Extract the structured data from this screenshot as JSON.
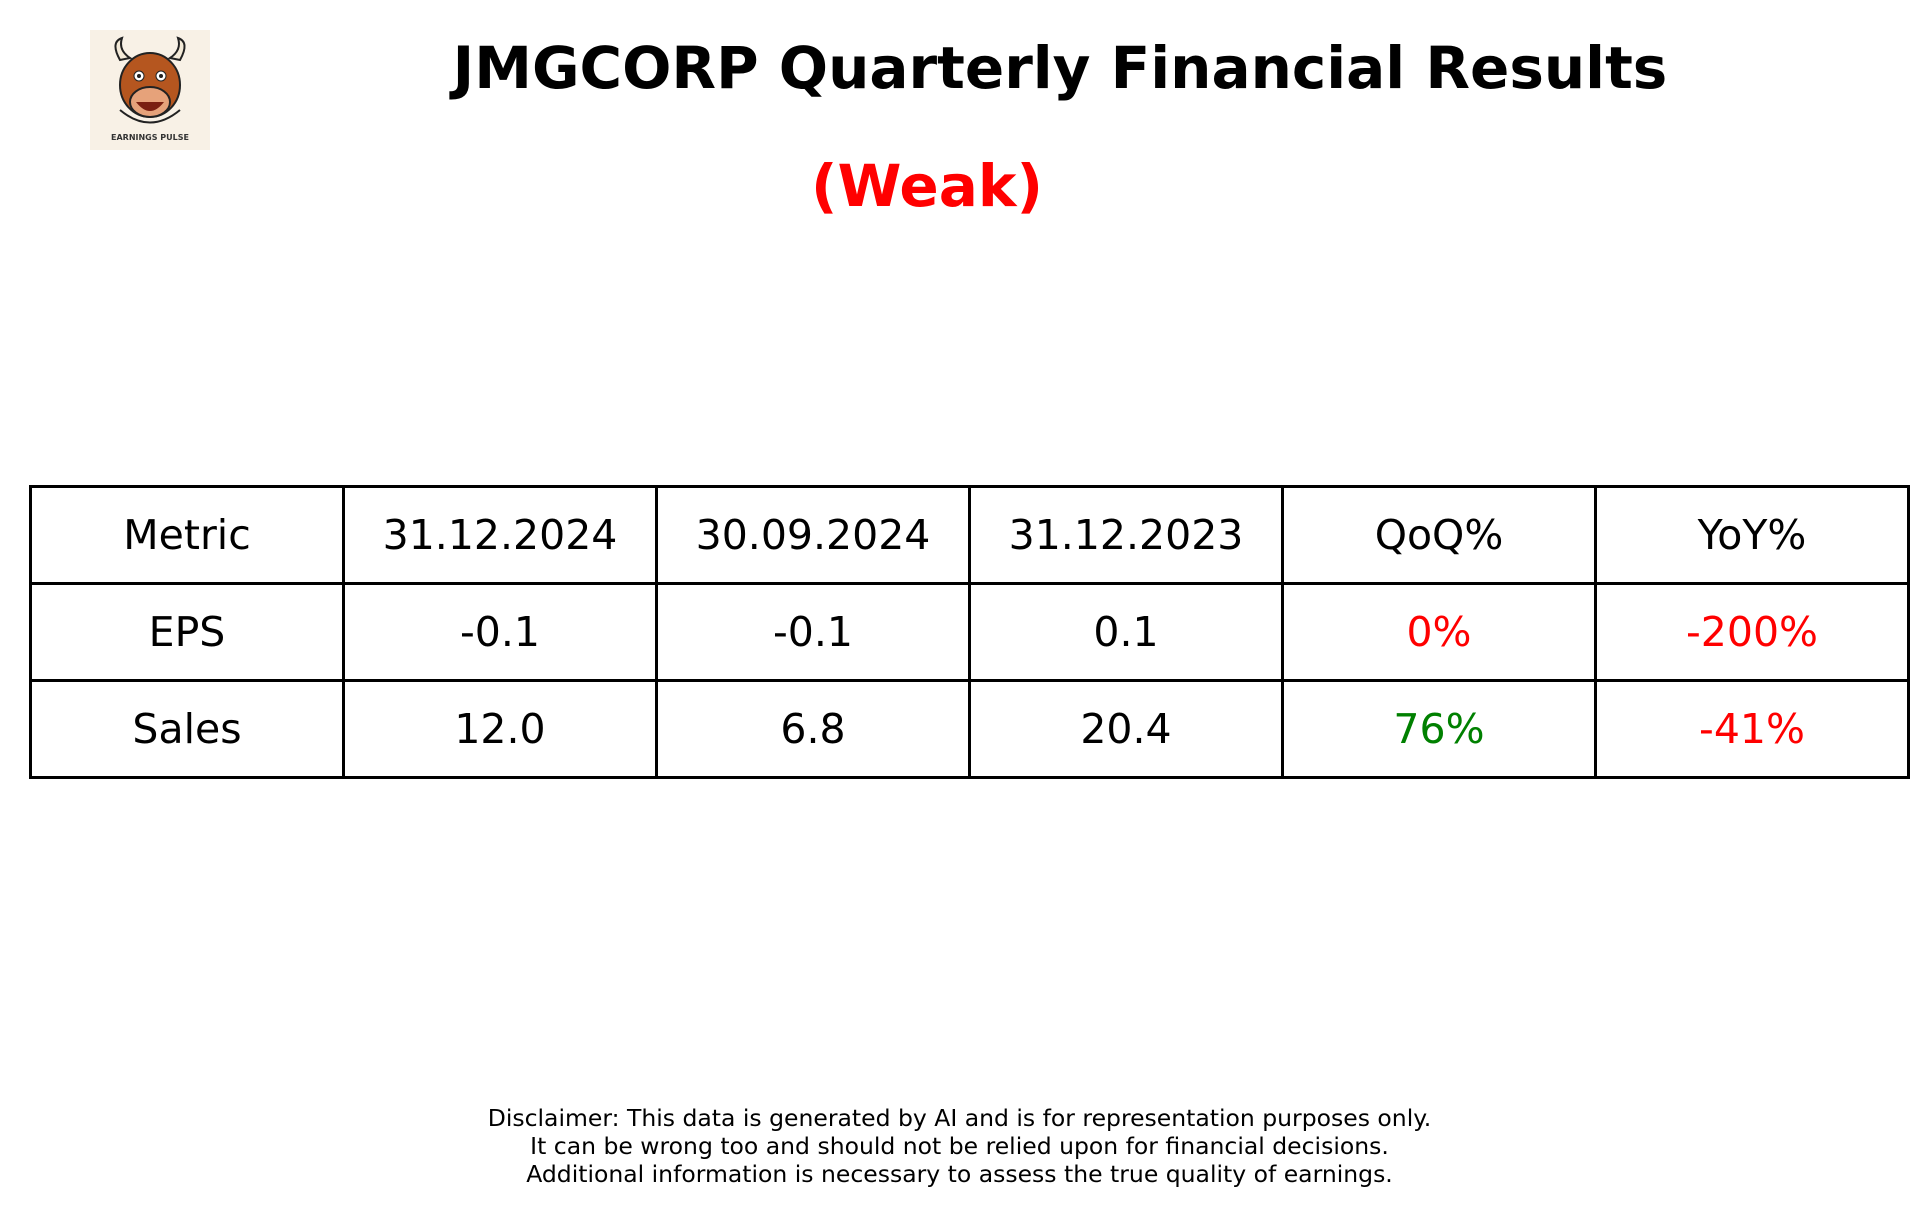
{
  "header": {
    "title": "JMGCORP Quarterly Financial Results",
    "rating": "(Weak)",
    "rating_color": "#ff0000",
    "logo_text": "EARNINGS PULSE"
  },
  "table": {
    "columns": [
      "Metric",
      "31.12.2024",
      "30.09.2024",
      "31.12.2023",
      "QoQ%",
      "YoY%"
    ],
    "rows": [
      [
        "EPS",
        "-0.1",
        "-0.1",
        "0.1",
        "0%",
        "-200%"
      ],
      [
        "Sales",
        "12.0",
        "6.8",
        "20.4",
        "76%",
        "-41%"
      ]
    ],
    "change_colors": [
      [
        "#ff0000",
        "#ff0000"
      ],
      [
        "#008000",
        "#ff0000"
      ]
    ]
  },
  "disclaimer": [
    "Disclaimer: This data is generated by AI and is for representation purposes only.",
    "It can be wrong too and should not be relied upon for financial decisions.",
    "Additional information is necessary to assess the true quality of earnings."
  ]
}
